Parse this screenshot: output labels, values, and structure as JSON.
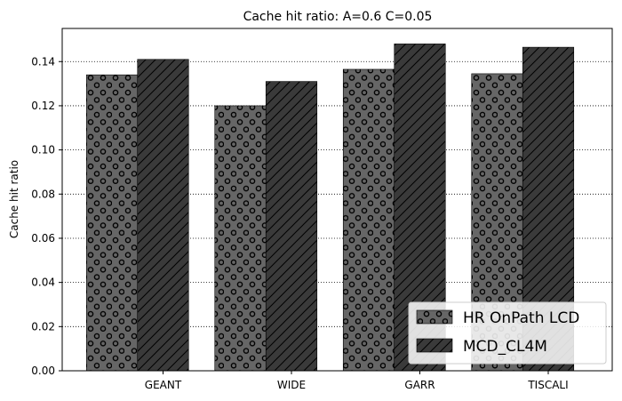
{
  "chart_data": {
    "type": "bar",
    "title": "Cache hit ratio: A=0.6 C=0.05",
    "xlabel": "",
    "ylabel": "Cache hit ratio",
    "categories": [
      "GEANT",
      "WIDE",
      "GARR",
      "TISCALI"
    ],
    "ylim": [
      0,
      0.155
    ],
    "yticks": [
      0.0,
      0.02,
      0.04,
      0.06,
      0.08,
      0.1,
      0.12,
      0.14
    ],
    "ytick_labels": [
      "0.00",
      "0.02",
      "0.04",
      "0.06",
      "0.08",
      "0.10",
      "0.12",
      "0.14"
    ],
    "grid": "horizontal-dotted",
    "legend_position": "bottom-right",
    "series": [
      {
        "name": "HR OnPath LCD",
        "color": "#666666",
        "hatch": "circles",
        "values": [
          0.134,
          0.12,
          0.1365,
          0.1345
        ]
      },
      {
        "name": "MCD_CL4M",
        "color": "#3a3a3a",
        "hatch": "diagonal",
        "values": [
          0.141,
          0.131,
          0.148,
          0.1465
        ]
      }
    ]
  }
}
